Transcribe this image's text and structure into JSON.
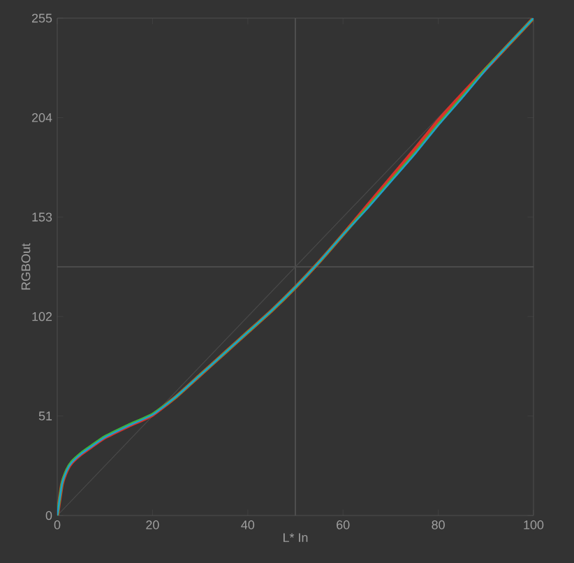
{
  "chart_data": {
    "type": "line",
    "xlabel": "L* In",
    "ylabel": "RGBOut",
    "x": [
      0,
      1,
      2,
      3,
      5,
      7,
      10,
      15,
      20,
      25,
      30,
      35,
      40,
      45,
      50,
      55,
      60,
      65,
      70,
      75,
      80,
      85,
      90,
      95,
      100
    ],
    "xlim": [
      0,
      100
    ],
    "ylim": [
      0,
      255
    ],
    "xticks": [
      0,
      20,
      40,
      60,
      80,
      100
    ],
    "yticks": [
      0,
      51,
      102,
      153,
      204,
      255
    ],
    "series": [
      {
        "color": "#4a4a4a",
        "x": [
          0,
          100
        ],
        "values": [
          0,
          255
        ]
      },
      {
        "color": "#d8322a",
        "values": [
          0,
          16,
          23,
          27,
          31.5,
          35,
          40,
          46,
          51.6,
          61,
          72,
          83,
          94,
          105,
          117,
          130,
          144,
          158.5,
          173,
          187.5,
          202.5,
          216,
          229,
          242,
          255
        ]
      },
      {
        "color": "#3cb43c",
        "values": [
          0,
          16.5,
          23.5,
          27.5,
          32,
          35.5,
          40.5,
          46.5,
          52,
          61,
          72,
          83,
          94,
          105,
          117,
          130,
          144,
          157.5,
          171.5,
          185.5,
          200.5,
          214.5,
          229,
          242,
          255
        ]
      },
      {
        "color": "#1e9ad6",
        "values": [
          0,
          16,
          23,
          27,
          31.5,
          35,
          40,
          46,
          51.6,
          61,
          72,
          83,
          94,
          105,
          117,
          130,
          144,
          157,
          171,
          185,
          200,
          214,
          228.5,
          242,
          255
        ]
      }
    ],
    "ref_lines": [
      {
        "axis": "x",
        "value": 50,
        "color": "#555555"
      },
      {
        "axis": "y",
        "value": 127.5,
        "color": "#555555"
      }
    ]
  }
}
